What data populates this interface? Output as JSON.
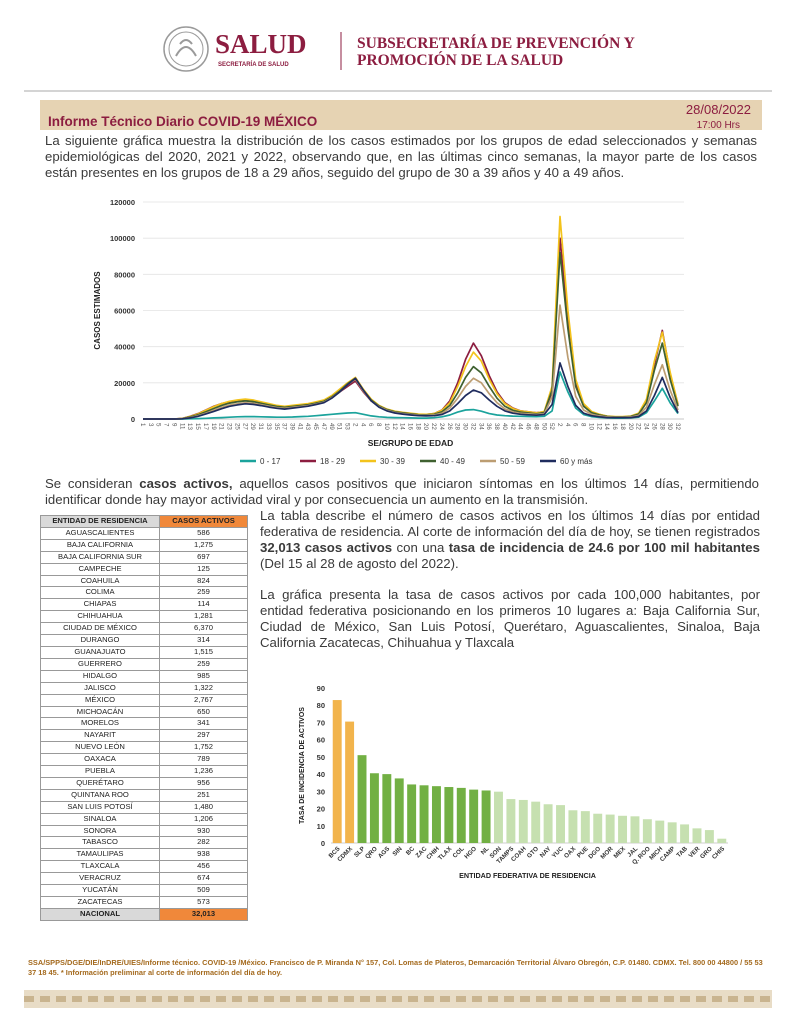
{
  "header": {
    "brand": "SALUD",
    "brand_sub": "SECRETARÍA DE SALUD",
    "agency_line1": "SUBSECRETARÍA DE PREVENCIÓN Y",
    "agency_line2": "PROMOCIÓN DE LA SALUD"
  },
  "report": {
    "title": "Informe Técnico Diario COVID-19 MÉXICO",
    "date": "28/08/2022",
    "time": "17:00 Hrs"
  },
  "paragraphs": [
    {
      "parts": [
        "La siguiente gráfica muestra la distribución de los casos estimados por los grupos de edad seleccionados y semanas epidemiológicas del 2020, 2021 y 2022, observando que, en las últimas cinco semanas, la mayor parte de los casos están presentes en los grupos de 18 a 29 años, seguido del grupo de 30 a 39 años y 40 a 49 años."
      ]
    },
    {
      "parts": [
        "Se consideran ",
        "casos activos,",
        " aquellos casos positivos que iniciaron síntomas en los últimos 14 días, permitiendo identificar donde hay mayor actividad viral y por consecuencia un aumento en la transmisión."
      ]
    },
    {
      "parts": [
        "La tabla describe el número de casos activos en los últimos 14 días por entidad federativa de residencia. Al corte de información del día de hoy, se tienen registrados ",
        "32,013 casos activos",
        " con una ",
        "tasa de incidencia de 24.6 por 100 mil habitantes",
        " (Del 15 al 28 de agosto del 2022)."
      ]
    },
    {
      "parts": [
        "La gráfica presenta la tasa de casos activos por cada 100,000 habitantes, por entidad federativa posicionando en los primeros 10 lugares a: Baja California Sur, Ciudad de México, San Luis Potosí, Querétaro, Aguascalientes, Sinaloa, Baja California Zacatecas, Chihuahua y Tlaxcala"
      ]
    }
  ],
  "chart_data": [
    {
      "type": "line",
      "x_label": "SE/GRUPO DE EDAD",
      "y_label": "CASOS ESTIMADOS",
      "grid": true,
      "legend": "bottom",
      "ylim": [
        0,
        120000
      ],
      "yticks": [
        0,
        20000,
        40000,
        60000,
        80000,
        100000,
        120000
      ],
      "categories": [
        "1",
        "3",
        "5",
        "7",
        "9",
        "11",
        "13",
        "15",
        "17",
        "19",
        "21",
        "23",
        "25",
        "27",
        "29",
        "31",
        "33",
        "35",
        "37",
        "39",
        "41",
        "43",
        "45",
        "47",
        "49",
        "51",
        "53",
        "2",
        "4",
        "6",
        "8",
        "10",
        "12",
        "14",
        "16",
        "18",
        "20",
        "22",
        "24",
        "26",
        "28",
        "30",
        "32",
        "34",
        "36",
        "38",
        "40",
        "42",
        "44",
        "46",
        "48",
        "50",
        "52",
        "2",
        "4",
        "6",
        "8",
        "10",
        "12",
        "14",
        "16",
        "18",
        "20",
        "22",
        "24",
        "26",
        "28",
        "30",
        "32"
      ],
      "series": [
        {
          "name": "0 - 17",
          "color": "#1ba39c",
          "values": [
            0,
            0,
            0,
            0,
            0,
            0,
            100,
            200,
            400,
            600,
            800,
            1000,
            1200,
            1300,
            1300,
            1200,
            1100,
            1000,
            1000,
            1100,
            1300,
            1500,
            1800,
            2200,
            2600,
            3000,
            3300,
            3500,
            2600,
            1700,
            1200,
            900,
            800,
            700,
            600,
            500,
            500,
            700,
            1200,
            2200,
            3800,
            5000,
            5200,
            4300,
            3000,
            2200,
            1800,
            1600,
            1500,
            1400,
            1300,
            1500,
            4500,
            26000,
            15000,
            6000,
            2500,
            1300,
            900,
            600,
            500,
            500,
            600,
            1000,
            3500,
            10000,
            17000,
            9000,
            3000
          ]
        },
        {
          "name": "18 - 29",
          "color": "#8c1d40",
          "values": [
            0,
            0,
            0,
            0,
            0,
            300,
            1500,
            3000,
            5000,
            7000,
            8500,
            9500,
            10000,
            10500,
            10000,
            9000,
            8000,
            7000,
            6500,
            7000,
            7500,
            8000,
            9000,
            10000,
            12000,
            15000,
            18000,
            21000,
            15000,
            10000,
            7000,
            5000,
            4000,
            3500,
            3000,
            2500,
            2500,
            3000,
            5000,
            10000,
            20000,
            33000,
            42000,
            35000,
            24000,
            15000,
            9000,
            6000,
            4500,
            4000,
            3500,
            4000,
            15000,
            100000,
            55000,
            20000,
            8000,
            4000,
            2500,
            1500,
            1200,
            1200,
            1500,
            3000,
            10000,
            30000,
            49000,
            25000,
            8000
          ]
        },
        {
          "name": "30 - 39",
          "color": "#f3c31c",
          "values": [
            0,
            0,
            0,
            0,
            0,
            300,
            1400,
            2800,
            4800,
            6800,
            8500,
            9800,
            10500,
            11000,
            10500,
            9500,
            8500,
            7500,
            7000,
            7500,
            8000,
            8500,
            9500,
            10500,
            13000,
            16500,
            20000,
            23000,
            16500,
            11000,
            7500,
            5500,
            4300,
            3700,
            3200,
            2700,
            2600,
            3000,
            4800,
            9000,
            18000,
            29000,
            37000,
            32000,
            22000,
            14000,
            8500,
            5800,
            4400,
            3900,
            3400,
            4200,
            18000,
            112000,
            60000,
            22000,
            8500,
            4200,
            2600,
            1600,
            1300,
            1300,
            1600,
            3200,
            11000,
            32000,
            48000,
            26000,
            8000
          ]
        },
        {
          "name": "40 - 49",
          "color": "#3f6130",
          "values": [
            0,
            0,
            0,
            0,
            0,
            200,
            1100,
            2300,
            4000,
            5800,
            7500,
            8800,
            9500,
            10000,
            9600,
            8700,
            7800,
            6900,
            6400,
            6900,
            7400,
            7900,
            8800,
            9800,
            12200,
            15500,
            19500,
            22500,
            16000,
            10500,
            7200,
            5200,
            4000,
            3400,
            2900,
            2400,
            2300,
            2600,
            4000,
            7500,
            14500,
            23000,
            29000,
            25500,
            18000,
            11500,
            7000,
            4800,
            3800,
            3300,
            2900,
            3600,
            16000,
            92000,
            50000,
            18000,
            7000,
            3500,
            2200,
            1400,
            1100,
            1100,
            1400,
            2700,
            9000,
            27000,
            42000,
            22000,
            7000
          ]
        },
        {
          "name": "50 - 59",
          "color": "#bc9d72",
          "values": [
            0,
            0,
            0,
            0,
            0,
            150,
            800,
            1800,
            3200,
            4800,
            6400,
            7700,
            8400,
            9000,
            8700,
            7900,
            7100,
            6300,
            5900,
            6400,
            6900,
            7400,
            8300,
            9300,
            11800,
            15000,
            19000,
            22000,
            15500,
            10000,
            6800,
            4800,
            3600,
            3000,
            2500,
            2100,
            2000,
            2200,
            3200,
            6000,
            11500,
            18000,
            22500,
            20000,
            14000,
            9000,
            5600,
            3900,
            3100,
            2800,
            2500,
            3000,
            12000,
            63000,
            34000,
            12500,
            5000,
            2600,
            1700,
            1100,
            900,
            900,
            1100,
            2000,
            6500,
            19000,
            30000,
            16000,
            5000
          ]
        },
        {
          "name": "60 y más",
          "color": "#1f2c5e",
          "values": [
            0,
            0,
            0,
            0,
            0,
            100,
            600,
            1500,
            2800,
            4200,
            5700,
            7000,
            7800,
            8400,
            8100,
            7400,
            6600,
            5900,
            5500,
            6000,
            6500,
            7100,
            8000,
            9000,
            11500,
            15000,
            19000,
            22500,
            16000,
            10000,
            6500,
            4500,
            3300,
            2700,
            2200,
            1800,
            1700,
            1800,
            2500,
            4500,
            8500,
            13000,
            16000,
            14500,
            10500,
            7000,
            4500,
            3200,
            2600,
            2300,
            2100,
            2500,
            8000,
            31000,
            18000,
            7500,
            3200,
            1800,
            1200,
            800,
            700,
            700,
            800,
            1400,
            4500,
            13000,
            23000,
            12000,
            3500
          ]
        }
      ]
    },
    {
      "type": "bar",
      "x_label": "ENTIDAD FEDERATIVA DE RESIDENCIA",
      "y_label": "TASA DE INCIDENCIA DE ACTIVOS",
      "grid": false,
      "ylim": [
        0,
        90
      ],
      "yticks": [
        0,
        10,
        20,
        30,
        40,
        50,
        60,
        70,
        80,
        90
      ],
      "categories": [
        "BCS",
        "CDMX",
        "SLP",
        "QRO",
        "AGS",
        "SIN",
        "BC",
        "ZAC",
        "CHIH",
        "TLAX",
        "COL",
        "HGO",
        "NL",
        "SON",
        "TAMPS",
        "COAH",
        "GTO",
        "NAY",
        "YUC",
        "OAX",
        "PUE",
        "DGO",
        "MOR",
        "MEX",
        "JAL",
        "Q. ROO",
        "MICH",
        "CAMP",
        "TAB",
        "VER",
        "GRO",
        "CHIS"
      ],
      "values": [
        83,
        70.5,
        51,
        40.5,
        40,
        37.5,
        34,
        33.5,
        33,
        32.5,
        32,
        31,
        30.5,
        29.8,
        25.5,
        25,
        24,
        22.5,
        22,
        19,
        18.5,
        17,
        16.5,
        15.8,
        15.5,
        13.8,
        13,
        12,
        10.8,
        8.5,
        7.5,
        2.5
      ],
      "colors": [
        "#f2b44c",
        "#f2b44c",
        "#72b043",
        "#72b043",
        "#72b043",
        "#72b043",
        "#72b043",
        "#72b043",
        "#72b043",
        "#72b043",
        "#72b043",
        "#72b043",
        "#72b043",
        "#c6e0b0",
        "#c6e0b0",
        "#c6e0b0",
        "#c6e0b0",
        "#c6e0b0",
        "#c6e0b0",
        "#c6e0b0",
        "#c6e0b0",
        "#c6e0b0",
        "#c6e0b0",
        "#c6e0b0",
        "#c6e0b0",
        "#c6e0b0",
        "#c6e0b0",
        "#c6e0b0",
        "#c6e0b0",
        "#c6e0b0",
        "#c6e0b0",
        "#c6e0b0"
      ]
    }
  ],
  "table": {
    "columns": [
      "ENTIDAD DE RESIDENCIA",
      "CASOS ACTIVOS"
    ],
    "rows": [
      [
        "AGUASCALIENTES",
        "586"
      ],
      [
        "BAJA CALIFORNIA",
        "1,275"
      ],
      [
        "BAJA CALIFORNIA SUR",
        "697"
      ],
      [
        "CAMPECHE",
        "125"
      ],
      [
        "COAHUILA",
        "824"
      ],
      [
        "COLIMA",
        "259"
      ],
      [
        "CHIAPAS",
        "114"
      ],
      [
        "CHIHUAHUA",
        "1,281"
      ],
      [
        "CIUDAD DE MÉXICO",
        "6,370"
      ],
      [
        "DURANGO",
        "314"
      ],
      [
        "GUANAJUATO",
        "1,515"
      ],
      [
        "GUERRERO",
        "259"
      ],
      [
        "HIDALGO",
        "985"
      ],
      [
        "JALISCO",
        "1,322"
      ],
      [
        "MÉXICO",
        "2,767"
      ],
      [
        "MICHOACÁN",
        "650"
      ],
      [
        "MORELOS",
        "341"
      ],
      [
        "NAYARIT",
        "297"
      ],
      [
        "NUEVO LEÓN",
        "1,752"
      ],
      [
        "OAXACA",
        "789"
      ],
      [
        "PUEBLA",
        "1,236"
      ],
      [
        "QUERÉTARO",
        "956"
      ],
      [
        "QUINTANA ROO",
        "251"
      ],
      [
        "SAN LUIS POTOSÍ",
        "1,480"
      ],
      [
        "SINALOA",
        "1,206"
      ],
      [
        "SONORA",
        "930"
      ],
      [
        "TABASCO",
        "282"
      ],
      [
        "TAMAULIPAS",
        "938"
      ],
      [
        "TLAXCALA",
        "456"
      ],
      [
        "VERACRUZ",
        "674"
      ],
      [
        "YUCATÁN",
        "509"
      ],
      [
        "ZACATECAS",
        "573"
      ]
    ],
    "total": [
      "NACIONAL",
      "32,013"
    ]
  },
  "footer": "SSA/SPPS/DGE/DIE/InDRE/UIES/Informe técnico. COVID-19 /México. Francisco de P. Miranda N° 157, Col. Lomas de Plateros, Demarcación Territorial Álvaro Obregón, C.P. 01480. CDMX. Tel. 800 00 44800 / 55 53 37 18 45. * Información preliminar al corte de información del día de hoy."
}
